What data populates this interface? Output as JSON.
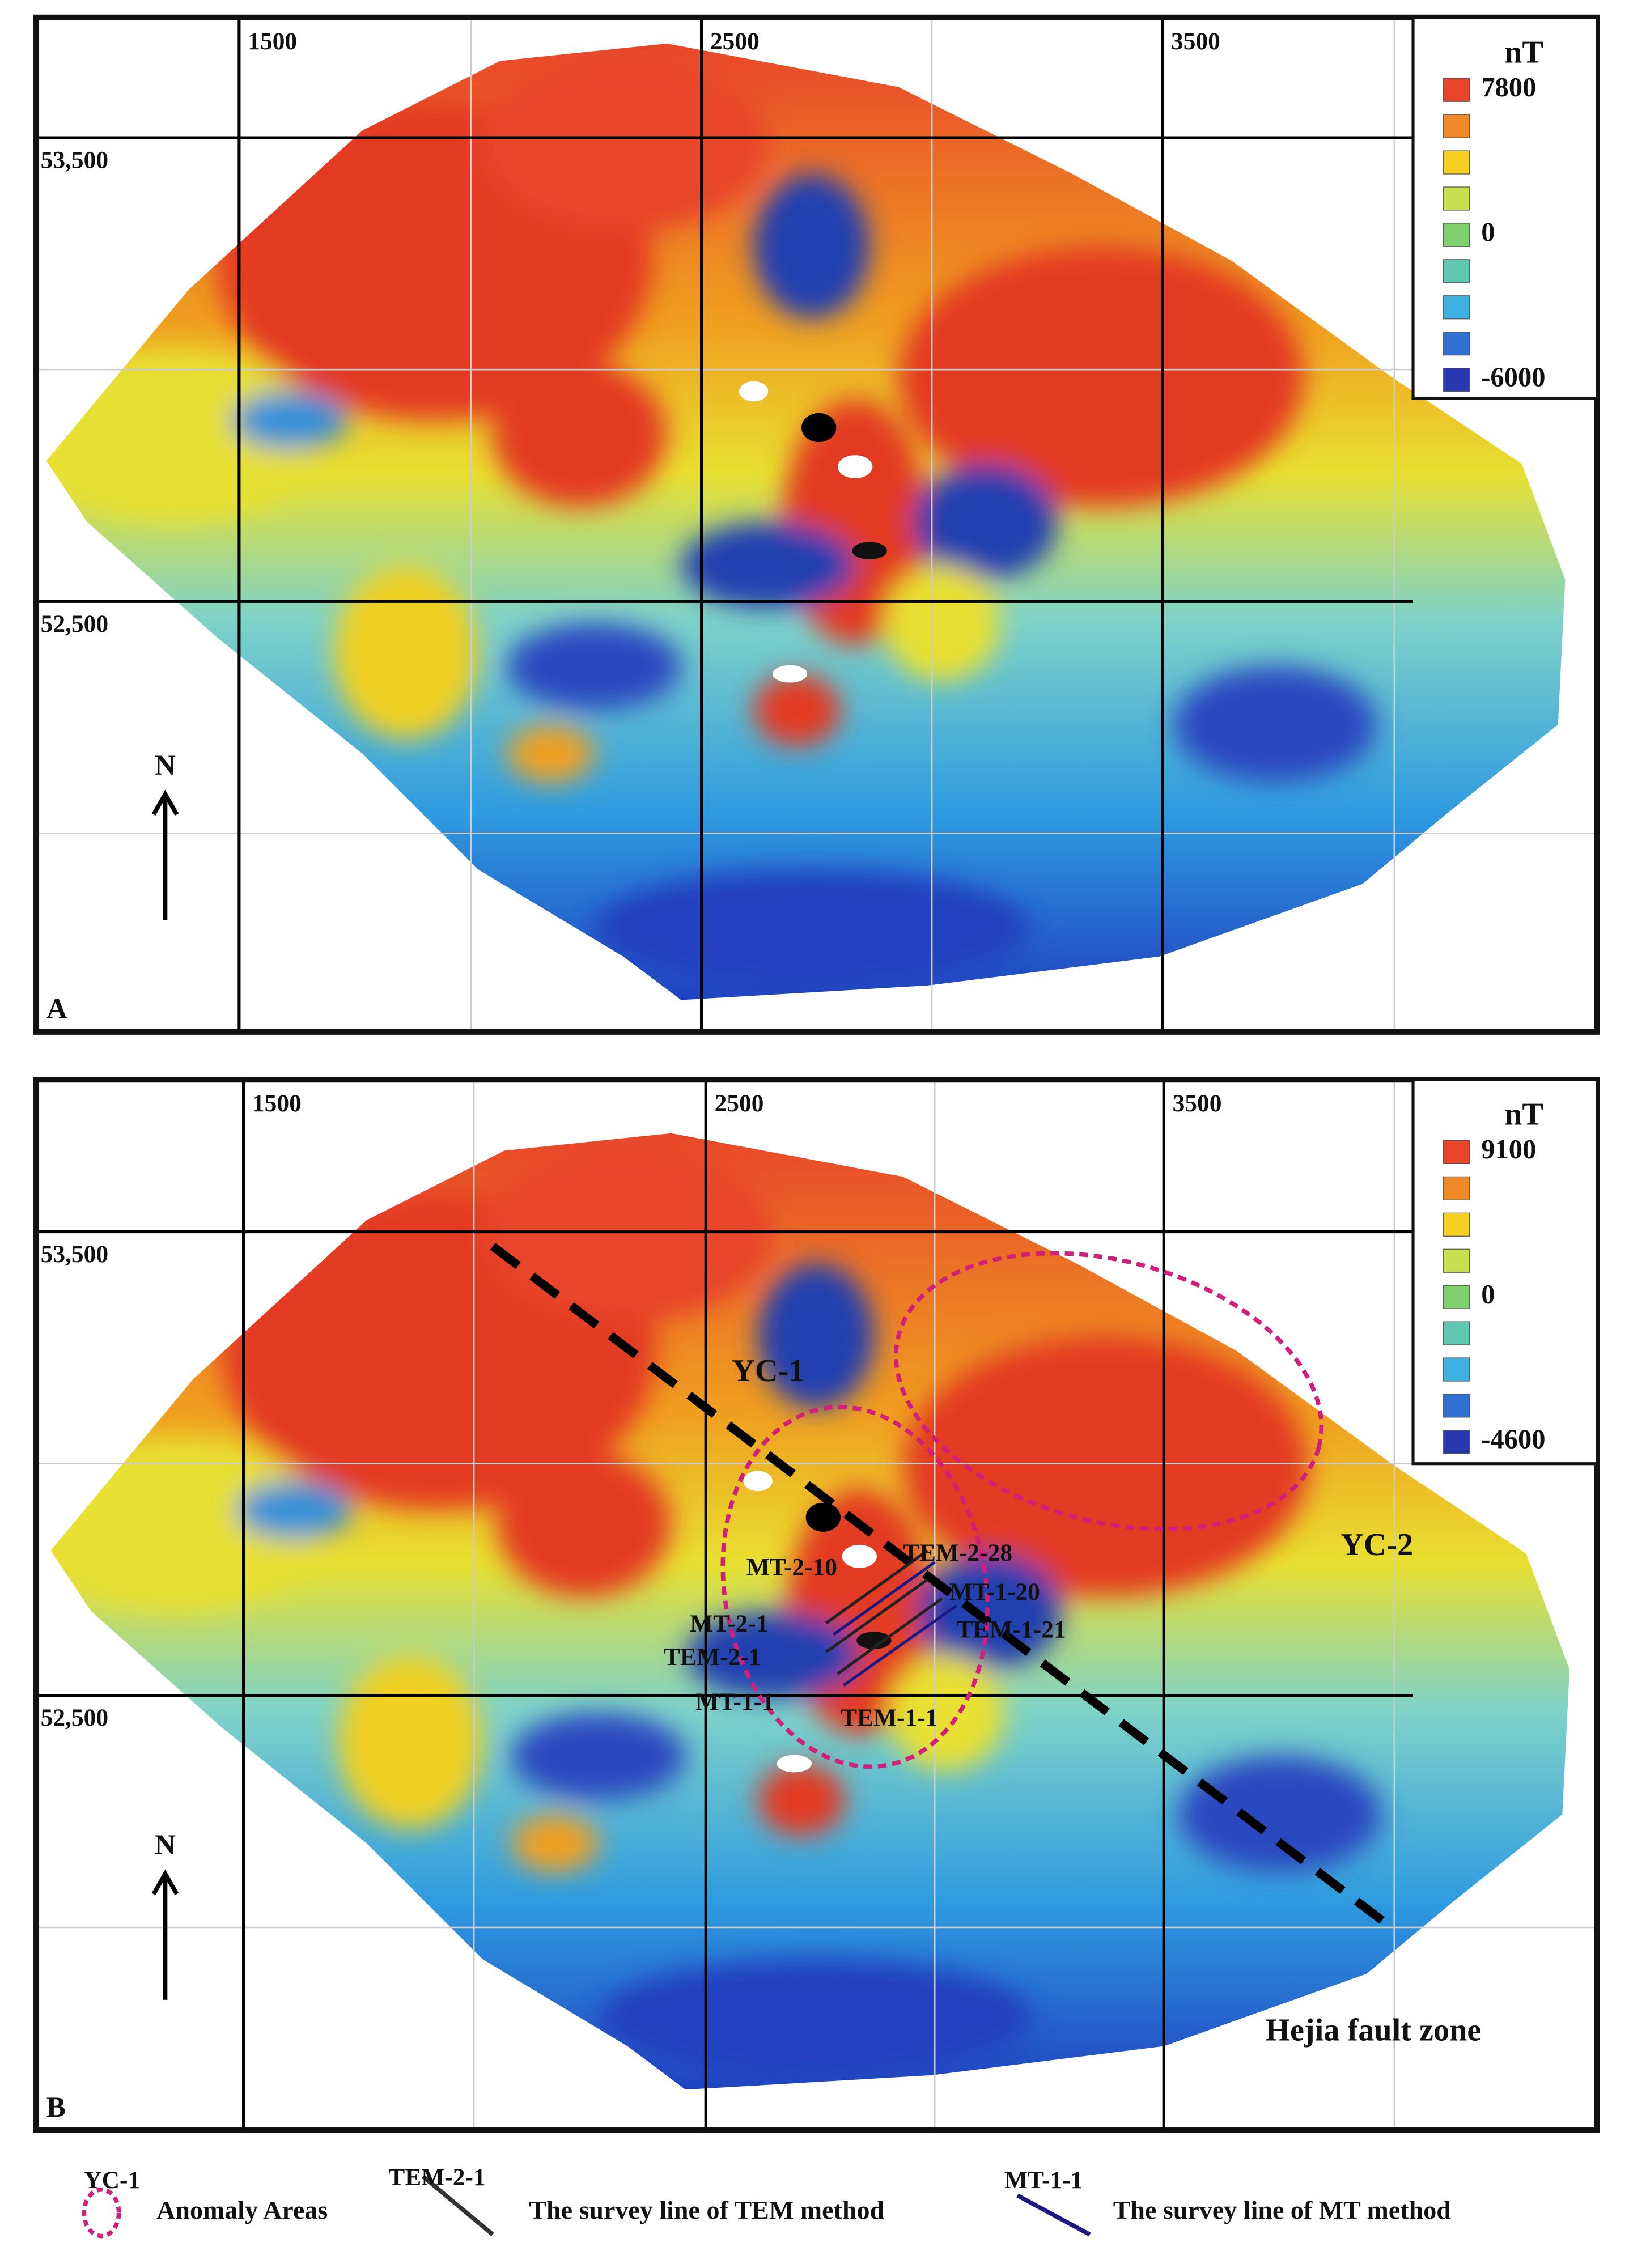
{
  "panels": [
    {
      "label": "A",
      "x_labels": [
        "1500",
        "2500",
        "3500"
      ],
      "y_labels": [
        "53,500",
        "52,500"
      ],
      "north": "N",
      "legend": {
        "unit": "nT",
        "values": [
          "7800",
          "0",
          "-6000"
        ]
      }
    },
    {
      "label": "B",
      "x_labels": [
        "1500",
        "2500",
        "3500"
      ],
      "y_labels": [
        "53,500",
        "52,500"
      ],
      "north": "N",
      "legend": {
        "unit": "nT",
        "values": [
          "9100",
          "0",
          "-4600"
        ]
      },
      "annotations": [
        "YC-1",
        "YC-2",
        "MT-2-10",
        "TEM-2-28",
        "MT-1-20",
        "MT-2-1",
        "TEM-1-21",
        "TEM-2-1",
        "MT-1-1",
        "TEM-1-1",
        "Hejia fault zone"
      ]
    }
  ],
  "key": [
    {
      "symbol_label": "YC-1",
      "text": "Anomaly Areas"
    },
    {
      "symbol_label": "TEM-2-1",
      "text": "The survey line of TEM method"
    },
    {
      "symbol_label": "MT-1-1",
      "text": "The survey line of  MT method"
    }
  ]
}
